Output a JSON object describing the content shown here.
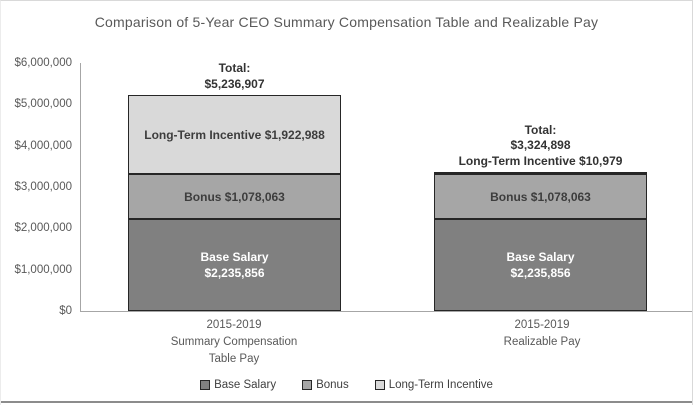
{
  "chart_data": {
    "type": "bar",
    "subtype": "stacked",
    "title": "Comparison of 5-Year CEO Summary Compensation Table and Realizable Pay",
    "xlabel": "",
    "ylabel": "",
    "ylim": [
      0,
      6000000
    ],
    "ytick_step": 1000000,
    "ytick_labels": [
      "$6,000,000",
      "$5,000,000",
      "$4,000,000",
      "$3,000,000",
      "$2,000,000",
      "$1,000,000",
      "$0"
    ],
    "grid": false,
    "legend_position": "bottom",
    "categories": [
      {
        "lines": [
          "2015-2019",
          "Summary Compensation",
          "Table Pay"
        ]
      },
      {
        "lines": [
          "2015-2019",
          "Realizable Pay"
        ]
      }
    ],
    "series": [
      {
        "name": "Base Salary",
        "color": "#808080",
        "values": [
          2235856,
          2235856
        ]
      },
      {
        "name": "Bonus",
        "color": "#a6a6a6",
        "values": [
          1078063,
          1078063
        ]
      },
      {
        "name": "Long-Term Incentive",
        "color": "#d9d9d9",
        "values": [
          1922988,
          10979
        ]
      }
    ],
    "totals": [
      5236907,
      3324898
    ]
  },
  "bars": [
    {
      "above_lines": [
        "Total:",
        "$5,236,907"
      ],
      "segments": {
        "base": {
          "line1": "Base Salary",
          "line2": "$2,235,856"
        },
        "bonus": {
          "label": "Bonus $1,078,063"
        },
        "lti": {
          "label": "Long-Term Incentive $1,922,988"
        }
      }
    },
    {
      "above_lines": [
        "Total:",
        "$3,324,898",
        "Long-Term Incentive $10,979"
      ],
      "segments": {
        "base": {
          "line1": "Base Salary",
          "line2": "$2,235,856"
        },
        "bonus": {
          "label": "Bonus $1,078,063"
        }
      }
    }
  ],
  "legend": {
    "items": [
      {
        "label": "Base Salary",
        "color": "#808080"
      },
      {
        "label": "Bonus",
        "color": "#a6a6a6"
      },
      {
        "label": "Long-Term Incentive",
        "color": "#d9d9d9"
      }
    ]
  }
}
